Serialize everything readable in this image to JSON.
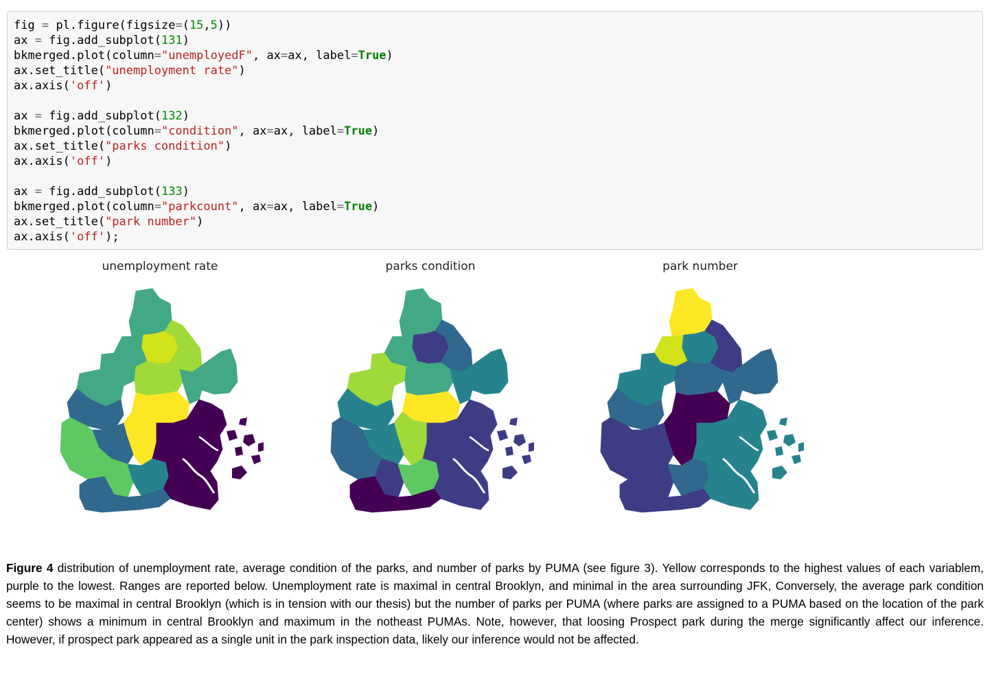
{
  "code": {
    "lines": [
      [
        {
          "t": "fig "
        },
        {
          "t": "=",
          "c": "op"
        },
        {
          "t": " pl.figure(figsize"
        },
        {
          "t": "=",
          "c": "op"
        },
        {
          "t": "("
        },
        {
          "t": "15",
          "c": "num"
        },
        {
          "t": ","
        },
        {
          "t": "5",
          "c": "num"
        },
        {
          "t": "))"
        }
      ],
      [
        {
          "t": "ax "
        },
        {
          "t": "=",
          "c": "op"
        },
        {
          "t": " fig.add_subplot("
        },
        {
          "t": "131",
          "c": "num"
        },
        {
          "t": ")"
        }
      ],
      [
        {
          "t": "bkmerged.plot(column"
        },
        {
          "t": "=",
          "c": "op"
        },
        {
          "t": "\"unemployedF\"",
          "c": "str"
        },
        {
          "t": ", ax"
        },
        {
          "t": "=",
          "c": "op"
        },
        {
          "t": "ax, label"
        },
        {
          "t": "=",
          "c": "op"
        },
        {
          "t": "True",
          "c": "kw"
        },
        {
          "t": ")"
        }
      ],
      [
        {
          "t": "ax.set_title("
        },
        {
          "t": "\"unemployment rate\"",
          "c": "str"
        },
        {
          "t": ")"
        }
      ],
      [
        {
          "t": "ax.axis("
        },
        {
          "t": "'off'",
          "c": "str"
        },
        {
          "t": ")"
        }
      ],
      [],
      [
        {
          "t": "ax "
        },
        {
          "t": "=",
          "c": "op"
        },
        {
          "t": " fig.add_subplot("
        },
        {
          "t": "132",
          "c": "num"
        },
        {
          "t": ")"
        }
      ],
      [
        {
          "t": "bkmerged.plot(column"
        },
        {
          "t": "=",
          "c": "op"
        },
        {
          "t": "\"condition\"",
          "c": "str"
        },
        {
          "t": ", ax"
        },
        {
          "t": "=",
          "c": "op"
        },
        {
          "t": "ax, label"
        },
        {
          "t": "=",
          "c": "op"
        },
        {
          "t": "True",
          "c": "kw"
        },
        {
          "t": ")"
        }
      ],
      [
        {
          "t": "ax.set_title("
        },
        {
          "t": "\"parks condition\"",
          "c": "str"
        },
        {
          "t": ")"
        }
      ],
      [
        {
          "t": "ax.axis("
        },
        {
          "t": "'off'",
          "c": "str"
        },
        {
          "t": ")"
        }
      ],
      [],
      [
        {
          "t": "ax "
        },
        {
          "t": "=",
          "c": "op"
        },
        {
          "t": " fig.add_subplot("
        },
        {
          "t": "133",
          "c": "num"
        },
        {
          "t": ")"
        }
      ],
      [
        {
          "t": "bkmerged.plot(column"
        },
        {
          "t": "=",
          "c": "op"
        },
        {
          "t": "\"parkcount\"",
          "c": "str"
        },
        {
          "t": ", ax"
        },
        {
          "t": "=",
          "c": "op"
        },
        {
          "t": "ax, label"
        },
        {
          "t": "=",
          "c": "op"
        },
        {
          "t": "True",
          "c": "kw"
        },
        {
          "t": ")"
        }
      ],
      [
        {
          "t": "ax.set_title("
        },
        {
          "t": "\"park number\"",
          "c": "str"
        },
        {
          "t": ")"
        }
      ],
      [
        {
          "t": "ax.axis("
        },
        {
          "t": "'off'",
          "c": "str"
        },
        {
          "t": ");"
        }
      ]
    ]
  },
  "palette": {
    "p0": "#440154",
    "p1": "#3e3c85",
    "p2": "#31688e",
    "p3": "#26838e",
    "p4": "#35b779",
    "p5": "#6ece58",
    "p6": "#b5de2b",
    "p7": "#fde725",
    "g1": "#43a884",
    "g2": "#5ec962",
    "g3": "#2a788e",
    "g4": "#9fda3a",
    "g5": "#d2e21b"
  },
  "maps": [
    {
      "title": "unemployment rate",
      "colors": {
        "north": "g1",
        "nw": "g1",
        "north2": "g5",
        "ne": "g4",
        "west_a": "g1",
        "west_b": "g1",
        "center_n": "g4",
        "east_a": "g1",
        "east_b": "g1",
        "center_mid": "p7",
        "center": "p7",
        "west_mid": "p2",
        "sw_a": "p2",
        "south_w": "g2",
        "sw": "g2",
        "south_mid": "p3",
        "bottom": "p2",
        "east_big": "p0",
        "se": "p0",
        "jam": "p0"
      }
    },
    {
      "title": "parks condition",
      "colors": {
        "north": "g1",
        "nw": "g1",
        "north2": "p1",
        "ne": "p2",
        "west_a": "g4",
        "west_b": "g4",
        "center_n": "g1",
        "east_a": "p3",
        "east_b": "p3",
        "center_mid": "p7",
        "center": "g4",
        "west_mid": "p3",
        "sw_a": "p3",
        "south_w": "p2",
        "sw": "p1",
        "south_mid": "g2",
        "bottom": "p0",
        "east_big": "p1",
        "se": "p1",
        "jam": "p1"
      }
    },
    {
      "title": "park number",
      "colors": {
        "north": "p7",
        "nw": "g5",
        "north2": "p3",
        "ne": "p1",
        "west_a": "p3",
        "west_b": "p3",
        "center_n": "p2",
        "east_a": "p2",
        "east_b": "p2",
        "center_mid": "p0",
        "center": "p0",
        "west_mid": "p2",
        "sw_a": "p1",
        "south_w": "p1",
        "sw": "p1",
        "south_mid": "p2",
        "bottom": "p1",
        "east_big": "p3",
        "se": "p3",
        "jam": "p3"
      }
    }
  ],
  "caption": {
    "label": "Figure 4",
    "text": " distribution of unemployment rate, average condition of the parks, and number of parks by PUMA (see figure 3). Yellow corresponds to the highest values of each variablem, purple to the lowest. Ranges are reported below. Unemployment rate is maximal in central Brooklyn, and minimal in the area surrounding JFK, Conversely, the average park condition seems to be maximal in central Brooklyn (which is in tension with our thesis) but the number of parks per PUMA (where parks are assigned to a PUMA based on the location of the park center) shows a minimum in central Brooklyn and maximum in the notheast PUMAs. Note, however, that loosing Prospect park during the merge significantly affect our inference. However, if prospect park appeared as a single unit in the park inspection data, likely our inference would not be affected."
  }
}
